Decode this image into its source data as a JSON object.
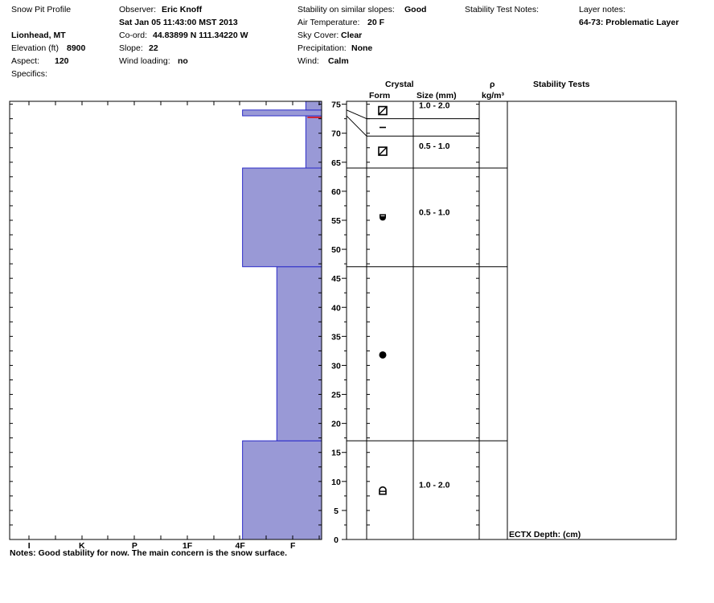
{
  "header": {
    "title": "Snow Pit Profile",
    "location": "Lionhead, MT",
    "elevation_label": "Elevation (ft)",
    "elevation_value": "8900",
    "aspect_label": "Aspect:",
    "aspect_value": "120",
    "specifics_label": "Specifics:",
    "observer_label": "Observer:",
    "observer_value": "Eric Knoff",
    "datetime": "Sat Jan 05 11:43:00 MST 2013",
    "coord_label": "Co-ord:",
    "coord_value": "44.83899 N 111.34220 W",
    "slope_label": "Slope:",
    "slope_value": "22",
    "wind_loading_label": "Wind loading:",
    "wind_loading_value": "no",
    "stability_label": "Stability on similar slopes:",
    "stability_value": "Good",
    "air_temp_label": "Air Temperature:",
    "air_temp_value": "20 F",
    "sky_label": "Sky Cover:",
    "sky_value": "Clear",
    "precip_label": "Precipitation:",
    "precip_value": "None",
    "wind_label": "Wind:",
    "wind_value": "Calm",
    "stability_notes_label": "Stability Test Notes:",
    "layer_notes_label": "Layer notes:",
    "layer_notes_value": "64-73: Problematic Layer"
  },
  "columns": {
    "crystal": "Crystal",
    "form": "Form",
    "size": "Size (mm)",
    "rho": "ρ",
    "density_unit": "kg/m³",
    "stability_tests": "Stability Tests"
  },
  "stability_test_entry": "ECTX   Depth: (cm)",
  "notes": "Notes:  Good stability for now.  The main concern is the snow surface.",
  "colors": {
    "layer_fill": "#9999d6",
    "layer_edge": "#2b2bc8",
    "temp_line": "#e00000",
    "axis": "#000000"
  },
  "chart_data": {
    "type": "bar",
    "orientation": "horizontal",
    "y_range": [
      0,
      75
    ],
    "y_ticks": [
      0,
      5,
      10,
      15,
      20,
      25,
      30,
      35,
      40,
      45,
      50,
      55,
      60,
      65,
      70,
      75
    ],
    "hardness_scale": [
      "I",
      "K",
      "P",
      "1F",
      "4F",
      "F"
    ],
    "hardness_positions": {
      "I": 1,
      "K": 2,
      "P": 3,
      "1F": 4,
      "4F": 5,
      "F": 6
    },
    "layers": [
      {
        "bottom": 0,
        "top": 17,
        "hardness": 5
      },
      {
        "bottom": 17,
        "top": 47,
        "hardness": 5.65
      },
      {
        "bottom": 47,
        "top": 64,
        "hardness": 5
      },
      {
        "bottom": 64,
        "top": 73,
        "hardness": 6.2
      },
      {
        "bottom": 73,
        "top": 74,
        "hardness": 5
      },
      {
        "bottom": 74,
        "top": 75.5,
        "hardness": 6.2
      }
    ],
    "red_marker_depth": 73,
    "crystal_rows": [
      {
        "top": 75.5,
        "bottom": 72.5,
        "size": "1.0 - 2.0",
        "form": "faceted",
        "symbol_y": 73.9
      },
      {
        "top": 72.5,
        "bottom": 69.5,
        "size": "",
        "form": "dash",
        "symbol_y": 71.0
      },
      {
        "top": 69.5,
        "bottom": 64,
        "size": "0.5 - 1.0",
        "form": "faceted",
        "symbol_y": 66.9
      },
      {
        "top": 64,
        "bottom": 47,
        "size": "0.5 - 1.0",
        "form": "rounded-faceted",
        "symbol_y": 55.5
      },
      {
        "top": 47,
        "bottom": 17,
        "size": "",
        "form": "round",
        "symbol_y": 31.8
      },
      {
        "top": 17,
        "bottom": 0,
        "size": "1.0 - 2.0",
        "form": "depth-hoar",
        "symbol_y": 8.5
      }
    ]
  }
}
